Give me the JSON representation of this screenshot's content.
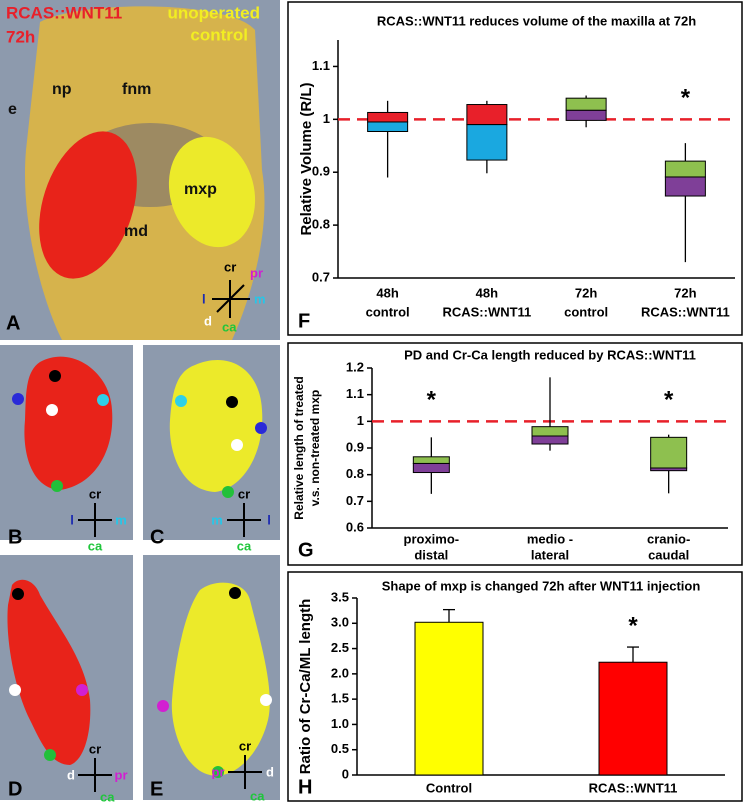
{
  "panels": {
    "a": {
      "letter": "A",
      "title": [
        "RCAS::WNT11",
        "72h"
      ],
      "control": [
        "unoperated",
        "control"
      ],
      "regions": [
        "np",
        "fnm",
        "e",
        "mxp",
        "md"
      ],
      "axes": [
        "cr",
        "pr",
        "m",
        "l",
        "d",
        "ca"
      ]
    },
    "b": {
      "letter": "B",
      "axes": [
        "cr",
        "l",
        "m",
        "ca"
      ]
    },
    "c": {
      "letter": "C",
      "axes": [
        "cr",
        "m",
        "l",
        "ca"
      ]
    },
    "d": {
      "letter": "D",
      "axes": [
        "cr",
        "d",
        "pr",
        "ca"
      ]
    },
    "e": {
      "letter": "E",
      "axes": [
        "cr",
        "pr",
        "d",
        "ca"
      ]
    }
  },
  "chart_data": [
    {
      "type": "box",
      "panel": "F",
      "title": "RCAS::WNT11 reduces volume of the maxilla at 72h",
      "ylabel": "Relative Volume (R/L)",
      "categories": [
        [
          "48h",
          "control"
        ],
        [
          "48h",
          "RCAS::WNT11"
        ],
        [
          "72h",
          "control"
        ],
        [
          "72h",
          "RCAS::WNT11"
        ]
      ],
      "boxes": [
        {
          "low": 0.89,
          "q1": 0.977,
          "median": 0.995,
          "q3": 1.013,
          "high": 1.035,
          "colors": [
            "#e8202a",
            "#1aa8e0"
          ]
        },
        {
          "low": 0.898,
          "q1": 0.923,
          "median": 0.99,
          "q3": 1.028,
          "high": 1.035,
          "colors": [
            "#e8202a",
            "#1aa8e0"
          ]
        },
        {
          "low": 0.985,
          "q1": 0.998,
          "median": 1.017,
          "q3": 1.04,
          "high": 1.045,
          "colors": [
            "#8ec04f",
            "#7f3f98"
          ]
        },
        {
          "low": 0.73,
          "q1": 0.855,
          "median": 0.891,
          "q3": 0.921,
          "high": 0.955,
          "colors": [
            "#8ec04f",
            "#7f3f98"
          ]
        }
      ],
      "markers": [
        null,
        null,
        null,
        "*"
      ],
      "reference_line": {
        "value": 1,
        "color": "#e8202a"
      },
      "ylim": [
        0.7,
        1.15
      ],
      "yticks": [
        0.7,
        0.8,
        0.9,
        1,
        1.1
      ]
    },
    {
      "type": "box",
      "panel": "G",
      "title": "PD and Cr-Ca length reduced by RCAS::WNT11",
      "ylabel": [
        "Relative length of treated",
        "v.s. non-treated mxp"
      ],
      "categories": [
        [
          "proximo-",
          "distal"
        ],
        [
          "medio -",
          "lateral"
        ],
        [
          "cranio-",
          "caudal"
        ]
      ],
      "boxes": [
        {
          "low": 0.728,
          "q1": 0.808,
          "median": 0.842,
          "q3": 0.867,
          "high": 0.94,
          "colors": [
            "#8ec04f",
            "#7f3f98"
          ]
        },
        {
          "low": 0.89,
          "q1": 0.915,
          "median": 0.945,
          "q3": 0.98,
          "high": 1.165,
          "colors": [
            "#8ec04f",
            "#7f3f98"
          ]
        },
        {
          "low": 0.73,
          "q1": 0.815,
          "median": 0.825,
          "q3": 0.94,
          "high": 0.95,
          "colors": [
            "#8ec04f",
            "#7f3f98"
          ]
        }
      ],
      "markers": [
        "*",
        null,
        "*"
      ],
      "reference_line": {
        "value": 1,
        "color": "#e8202a"
      },
      "ylim": [
        0.6,
        1.2
      ],
      "yticks": [
        0.6,
        0.7,
        0.8,
        0.9,
        1,
        1.1,
        1.2
      ]
    },
    {
      "type": "bar",
      "panel": "H",
      "title": "Shape of mxp is changed 72h after WNT11 injection",
      "ylabel": "Ratio of Cr-Ca/ML length",
      "categories": [
        [
          "Control"
        ],
        [
          "RCAS::WNT11"
        ]
      ],
      "values": [
        3.02,
        2.23
      ],
      "errors": [
        0.25,
        0.3
      ],
      "colors": [
        "#ffff00",
        "#ff0000"
      ],
      "markers": [
        null,
        "*"
      ],
      "ylim": [
        0,
        3.5
      ],
      "yticks": [
        0,
        0.5,
        {
          "value": 1,
          "label": "1.0"
        },
        1.5,
        {
          "value": 2,
          "label": "2.0"
        },
        2.5,
        {
          "value": 3,
          "label": "3.0"
        },
        3.5
      ]
    }
  ]
}
